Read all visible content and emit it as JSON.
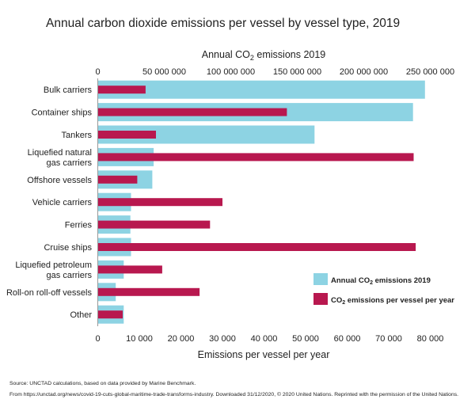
{
  "chart_data": {
    "type": "bar",
    "orientation": "horizontal",
    "title": "Annual carbon dioxide emissions per vessel by vessel type, 2019",
    "categories": [
      "Bulk carriers",
      "Container ships",
      "Tankers",
      "Liquefied natural gas carriers",
      "Offshore vessels",
      "Vehicle carriers",
      "Ferries",
      "Cruise ships",
      "Liquefied petroleum gas carriers",
      "Roll-on roll-off vessels",
      "Other"
    ],
    "category_lines": [
      [
        "Bulk carriers"
      ],
      [
        "Container ships"
      ],
      [
        "Tankers"
      ],
      [
        "Liquefied natural",
        "gas carriers"
      ],
      [
        "Offshore vessels"
      ],
      [
        "Vehicle carriers"
      ],
      [
        "Ferries"
      ],
      [
        "Cruise ships"
      ],
      [
        "Liquefied petroleum",
        "gas carriers"
      ],
      [
        "Roll-on roll-off vessels"
      ],
      [
        "Other"
      ]
    ],
    "series": [
      {
        "name": "Annual CO₂ emissions 2019",
        "name_base": "Annual CO",
        "name_sub": "2",
        "name_rest": " emissions 2019",
        "axis": "top",
        "color": "#8dd3e3",
        "values": [
          246000000,
          237000000,
          163000000,
          42000000,
          41000000,
          25000000,
          24500000,
          25000000,
          19500000,
          13500000,
          19500000
        ]
      },
      {
        "name": "CO₂ emissions per vessel per year",
        "name_base": "CO",
        "name_sub": "2",
        "name_rest": " emissions per vessel per year",
        "axis": "bottom",
        "color": "#b8184f",
        "values": [
          11500,
          45500,
          14000,
          76000,
          9500,
          30000,
          27000,
          76500,
          15500,
          24500,
          6000
        ]
      }
    ],
    "top_axis": {
      "label_base": "Annual CO",
      "label_sub": "2",
      "label_rest": " emissions 2019",
      "range": [
        0,
        250000000
      ],
      "ticks": [
        0,
        50000000,
        100000000,
        150000000,
        200000000,
        250000000
      ],
      "tick_labels": [
        "0",
        "50 000 000",
        "100 000 000",
        "150 000 000",
        "200 000 000",
        "250 000 000"
      ]
    },
    "bottom_axis": {
      "label": "Emissions per vessel per year",
      "range": [
        0,
        80000
      ],
      "ticks": [
        0,
        10000,
        20000,
        30000,
        40000,
        50000,
        60000,
        70000,
        80000
      ],
      "tick_labels": [
        "0",
        "10 000",
        "20 000",
        "30 000",
        "40 000",
        "50 000",
        "60 000",
        "70 000",
        "80 000"
      ]
    },
    "legend_position": "bottom-right",
    "grid": false
  },
  "source": "Source: UNCTAD calculations, based on data provided by Marine Benchmark.",
  "credit": "From https://unctad.org/news/covid-19-cuts-global-maritime-trade-transforms-industry. Downloaded 31/12/2020, © 2020 United Nations. Reprinted with the permission of the United Nations."
}
